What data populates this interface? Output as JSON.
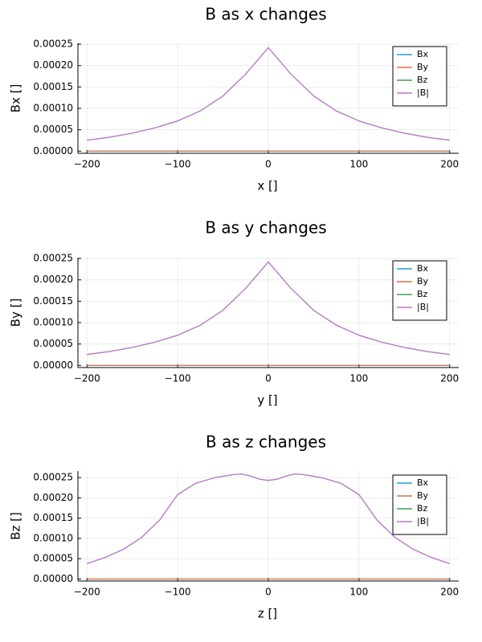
{
  "chart_data": [
    {
      "type": "line",
      "title": "B as x changes",
      "xlabel": "x []",
      "ylabel": "Bx []",
      "xlim": [
        -210,
        210
      ],
      "ylim": [
        -5e-06,
        0.000252
      ],
      "xticks": [
        -200,
        -100,
        0,
        100,
        200
      ],
      "xtick_labels": [
        "−200",
        "−100",
        "0",
        "100",
        "200"
      ],
      "yticks": [
        0,
        5e-05,
        0.0001,
        0.00015,
        0.0002,
        0.00025
      ],
      "ytick_labels": [
        "0.00000",
        "0.00005",
        "0.00010",
        "0.00015",
        "0.00020",
        "0.00025"
      ],
      "grid": true,
      "legend_position": "top-right",
      "x": [
        -200,
        -175,
        -150,
        -125,
        -100,
        -75,
        -50,
        -25,
        0,
        25,
        50,
        75,
        100,
        125,
        150,
        175,
        200
      ],
      "series": [
        {
          "name": "Bx",
          "color": "#1f9ed8",
          "values": [
            0,
            0,
            0,
            0,
            0,
            0,
            0,
            0,
            0,
            0,
            0,
            0,
            0,
            0,
            0,
            0,
            0
          ]
        },
        {
          "name": "By",
          "color": "#e26f46",
          "values": [
            0,
            0,
            0,
            0,
            0,
            0,
            0,
            0,
            0,
            0,
            0,
            0,
            0,
            0,
            0,
            0,
            0
          ]
        },
        {
          "name": "Bz",
          "color": "#3da44d",
          "values": [
            2.55e-05,
            3.25e-05,
            4.2e-05,
            5.45e-05,
            7.05e-05,
            9.4e-05,
            0.000129,
            0.00018,
            0.000242,
            0.00018,
            0.000129,
            9.4e-05,
            7.05e-05,
            5.45e-05,
            4.2e-05,
            3.25e-05,
            2.55e-05
          ]
        },
        {
          "name": "|B|",
          "color": "#c371d2",
          "values": [
            2.55e-05,
            3.25e-05,
            4.2e-05,
            5.45e-05,
            7.05e-05,
            9.4e-05,
            0.000129,
            0.00018,
            0.000242,
            0.00018,
            0.000129,
            9.4e-05,
            7.05e-05,
            5.45e-05,
            4.2e-05,
            3.25e-05,
            2.55e-05
          ]
        }
      ]
    },
    {
      "type": "line",
      "title": "B as y changes",
      "xlabel": "y []",
      "ylabel": "By []",
      "xlim": [
        -210,
        210
      ],
      "ylim": [
        -5e-06,
        0.000252
      ],
      "xticks": [
        -200,
        -100,
        0,
        100,
        200
      ],
      "xtick_labels": [
        "−200",
        "−100",
        "0",
        "100",
        "200"
      ],
      "yticks": [
        0,
        5e-05,
        0.0001,
        0.00015,
        0.0002,
        0.00025
      ],
      "ytick_labels": [
        "0.00000",
        "0.00005",
        "0.00010",
        "0.00015",
        "0.00020",
        "0.00025"
      ],
      "grid": true,
      "legend_position": "top-right",
      "x": [
        -200,
        -175,
        -150,
        -125,
        -100,
        -75,
        -50,
        -25,
        0,
        25,
        50,
        75,
        100,
        125,
        150,
        175,
        200
      ],
      "series": [
        {
          "name": "Bx",
          "color": "#1f9ed8",
          "values": [
            0,
            0,
            0,
            0,
            0,
            0,
            0,
            0,
            0,
            0,
            0,
            0,
            0,
            0,
            0,
            0,
            0
          ]
        },
        {
          "name": "By",
          "color": "#e26f46",
          "values": [
            0,
            0,
            0,
            0,
            0,
            0,
            0,
            0,
            0,
            0,
            0,
            0,
            0,
            0,
            0,
            0,
            0
          ]
        },
        {
          "name": "Bz",
          "color": "#3da44d",
          "values": [
            2.55e-05,
            3.25e-05,
            4.2e-05,
            5.45e-05,
            7.05e-05,
            9.4e-05,
            0.000129,
            0.00018,
            0.000242,
            0.00018,
            0.000129,
            9.4e-05,
            7.05e-05,
            5.45e-05,
            4.2e-05,
            3.25e-05,
            2.55e-05
          ]
        },
        {
          "name": "|B|",
          "color": "#c371d2",
          "values": [
            2.55e-05,
            3.25e-05,
            4.2e-05,
            5.45e-05,
            7.05e-05,
            9.4e-05,
            0.000129,
            0.00018,
            0.000242,
            0.00018,
            0.000129,
            9.4e-05,
            7.05e-05,
            5.45e-05,
            4.2e-05,
            3.25e-05,
            2.55e-05
          ]
        }
      ]
    },
    {
      "type": "line",
      "title": "B as z changes",
      "xlabel": "z []",
      "ylabel": "Bz []",
      "xlim": [
        -210,
        210
      ],
      "ylim": [
        -5e-06,
        0.000266
      ],
      "xticks": [
        -200,
        -100,
        0,
        100,
        200
      ],
      "xtick_labels": [
        "−200",
        "−100",
        "0",
        "100",
        "200"
      ],
      "yticks": [
        0,
        5e-05,
        0.0001,
        0.00015,
        0.0002,
        0.00025
      ],
      "ytick_labels": [
        "0.00000",
        "0.00005",
        "0.00010",
        "0.00015",
        "0.00020",
        "0.00025"
      ],
      "grid": true,
      "legend_position": "top-right",
      "x": [
        -200,
        -180,
        -160,
        -140,
        -120,
        -100,
        -80,
        -60,
        -40,
        -30,
        -20,
        -10,
        0,
        10,
        20,
        30,
        40,
        60,
        80,
        100,
        120,
        140,
        160,
        180,
        200
      ],
      "series": [
        {
          "name": "Bx",
          "color": "#1f9ed8",
          "values": [
            0,
            0,
            0,
            0,
            0,
            0,
            0,
            0,
            0,
            0,
            0,
            0,
            0,
            0,
            0,
            0,
            0,
            0,
            0,
            0,
            0,
            0,
            0,
            0,
            0
          ]
        },
        {
          "name": "By",
          "color": "#e26f46",
          "values": [
            0,
            0,
            0,
            0,
            0,
            0,
            0,
            0,
            0,
            0,
            0,
            0,
            0,
            0,
            0,
            0,
            0,
            0,
            0,
            0,
            0,
            0,
            0,
            0,
            0
          ]
        },
        {
          "name": "Bz",
          "color": "#3da44d",
          "values": [
            3.8e-05,
            5.3e-05,
            7.3e-05,
            0.000102,
            0.000145,
            0.000208,
            0.000236,
            0.000249,
            0.000257,
            0.000259,
            0.000254,
            0.000246,
            0.000243,
            0.000246,
            0.000254,
            0.000259,
            0.000257,
            0.000249,
            0.000236,
            0.000208,
            0.000145,
            0.000102,
            7.3e-05,
            5.3e-05,
            3.8e-05
          ]
        },
        {
          "name": "|B|",
          "color": "#c371d2",
          "values": [
            3.8e-05,
            5.3e-05,
            7.3e-05,
            0.000102,
            0.000145,
            0.000208,
            0.000236,
            0.000249,
            0.000257,
            0.000259,
            0.000254,
            0.000246,
            0.000243,
            0.000246,
            0.000254,
            0.000259,
            0.000257,
            0.000249,
            0.000236,
            0.000208,
            0.000145,
            0.000102,
            7.3e-05,
            5.3e-05,
            3.8e-05
          ]
        }
      ]
    }
  ]
}
